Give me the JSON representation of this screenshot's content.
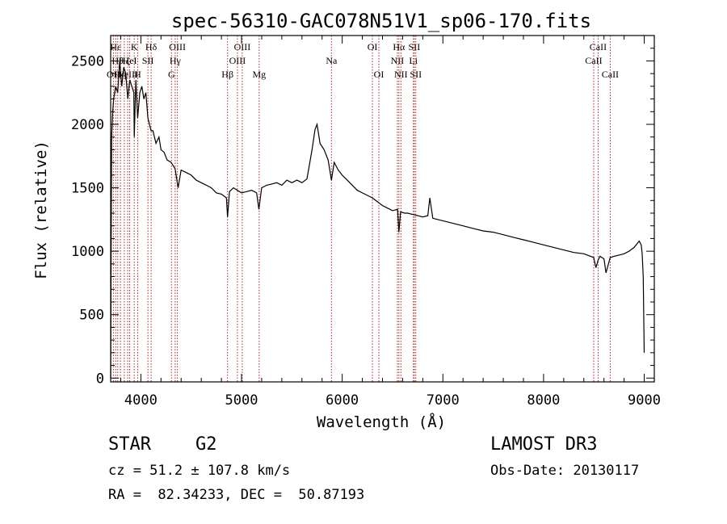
{
  "chart_data": {
    "type": "line",
    "title": "spec-56310-GAC078N51V1_sp06-170.fits",
    "xlabel": "Wavelength (Å)",
    "ylabel": "Flux (relative)",
    "xlim": [
      3700,
      9100
    ],
    "ylim": [
      -30,
      2700
    ],
    "xticks": [
      4000,
      5000,
      6000,
      7000,
      8000,
      9000
    ],
    "yticks": [
      0,
      500,
      1000,
      1500,
      2000,
      2500
    ],
    "x_minor_step": 200,
    "y_minor_step": 100,
    "spectrum": {
      "x": [
        3700,
        3705,
        3710,
        3720,
        3730,
        3750,
        3770,
        3790,
        3810,
        3830,
        3850,
        3870,
        3890,
        3910,
        3930,
        3934,
        3950,
        3968,
        3990,
        4010,
        4030,
        4050,
        4070,
        4101,
        4120,
        4150,
        4180,
        4200,
        4230,
        4260,
        4300,
        4340,
        4370,
        4400,
        4450,
        4500,
        4550,
        4600,
        4650,
        4700,
        4750,
        4800,
        4850,
        4861,
        4880,
        4920,
        4960,
        5000,
        5050,
        5100,
        5150,
        5172,
        5200,
        5250,
        5300,
        5350,
        5400,
        5450,
        5500,
        5550,
        5600,
        5650,
        5700,
        5730,
        5750,
        5780,
        5820,
        5860,
        5893,
        5920,
        5960,
        6000,
        6050,
        6100,
        6150,
        6200,
        6250,
        6300,
        6350,
        6400,
        6450,
        6500,
        6550,
        6563,
        6580,
        6620,
        6650,
        6700,
        6750,
        6800,
        6850,
        6870,
        6900,
        6950,
        7000,
        7100,
        7200,
        7300,
        7400,
        7500,
        7600,
        7700,
        7800,
        7900,
        8000,
        8100,
        8200,
        8300,
        8400,
        8498,
        8520,
        8542,
        8560,
        8600,
        8620,
        8662,
        8700,
        8750,
        8800,
        8850,
        8900,
        8930,
        8950,
        8970,
        8980,
        8990,
        9000
      ],
      "y": [
        0,
        1000,
        1900,
        2100,
        2200,
        2300,
        2250,
        2500,
        2300,
        2450,
        2400,
        2200,
        2350,
        2300,
        2250,
        1900,
        2350,
        2050,
        2250,
        2300,
        2200,
        2250,
        2050,
        1950,
        1950,
        1850,
        1900,
        1800,
        1780,
        1720,
        1700,
        1650,
        1500,
        1640,
        1620,
        1600,
        1560,
        1540,
        1520,
        1500,
        1460,
        1450,
        1420,
        1270,
        1470,
        1500,
        1480,
        1460,
        1470,
        1480,
        1460,
        1330,
        1500,
        1520,
        1530,
        1540,
        1520,
        1560,
        1540,
        1560,
        1540,
        1570,
        1800,
        1960,
        2000,
        1850,
        1800,
        1720,
        1560,
        1700,
        1640,
        1600,
        1560,
        1520,
        1480,
        1460,
        1440,
        1420,
        1390,
        1360,
        1340,
        1320,
        1330,
        1150,
        1310,
        1300,
        1300,
        1290,
        1280,
        1270,
        1280,
        1420,
        1260,
        1250,
        1240,
        1220,
        1200,
        1180,
        1160,
        1150,
        1130,
        1110,
        1090,
        1070,
        1050,
        1030,
        1010,
        990,
        980,
        950,
        870,
        930,
        960,
        940,
        830,
        950,
        960,
        970,
        980,
        1000,
        1030,
        1060,
        1080,
        1050,
        980,
        800,
        200
      ]
    },
    "line_markers": [
      {
        "x": 3727,
        "label": "OII",
        "row": 3
      },
      {
        "x": 3750,
        "label": "Hε",
        "row": 1
      },
      {
        "x": 3770,
        "label": "Hθ",
        "row": 2
      },
      {
        "x": 3797,
        "label": "Hη",
        "row": 3
      },
      {
        "x": 3835,
        "label": "Hζ",
        "row": 2
      },
      {
        "x": 3869,
        "label": "NeIII",
        "row": 3
      },
      {
        "x": 3889,
        "label": "HeI",
        "row": 2
      },
      {
        "x": 3934,
        "label": "K",
        "row": 1
      },
      {
        "x": 3968,
        "label": "H",
        "row": 3
      },
      {
        "x": 4070,
        "label": "SII",
        "row": 2
      },
      {
        "x": 4102,
        "label": "Hδ",
        "row": 1
      },
      {
        "x": 4304,
        "label": "G",
        "row": 3
      },
      {
        "x": 4341,
        "label": "Hγ",
        "row": 2
      },
      {
        "x": 4363,
        "label": "OIII",
        "row": 1
      },
      {
        "x": 4861,
        "label": "Hβ",
        "row": 3
      },
      {
        "x": 4959,
        "label": "OIII",
        "row": 2
      },
      {
        "x": 5007,
        "label": "OIII",
        "row": 1
      },
      {
        "x": 5175,
        "label": "Mg",
        "row": 3
      },
      {
        "x": 5893,
        "label": "Na",
        "row": 2
      },
      {
        "x": 6300,
        "label": "OI",
        "row": 1
      },
      {
        "x": 6364,
        "label": "OI",
        "row": 3
      },
      {
        "x": 6548,
        "label": "NII",
        "row": 2
      },
      {
        "x": 6563,
        "label": "Hα",
        "row": 1
      },
      {
        "x": 6583,
        "label": "NII",
        "row": 3
      },
      {
        "x": 6707,
        "label": "Li",
        "row": 2
      },
      {
        "x": 6716,
        "label": "SII",
        "row": 1
      },
      {
        "x": 6731,
        "label": "SII",
        "row": 3
      },
      {
        "x": 8498,
        "label": "CaII",
        "row": 2
      },
      {
        "x": 8542,
        "label": "CaII",
        "row": 1
      },
      {
        "x": 8662,
        "label": "CaII",
        "row": 3
      }
    ],
    "colors": {
      "spectrum": "#000000",
      "markers": "#b22222",
      "axes": "#000000"
    }
  },
  "info": {
    "object_class": "STAR",
    "subclass": "G2",
    "survey": "LAMOST DR3",
    "redshift": "cz = 51.2 ± 107.8 km/s",
    "obs_date": "Obs-Date: 20130117",
    "coords": "RA =  82.34233, DEC =  50.87193"
  }
}
